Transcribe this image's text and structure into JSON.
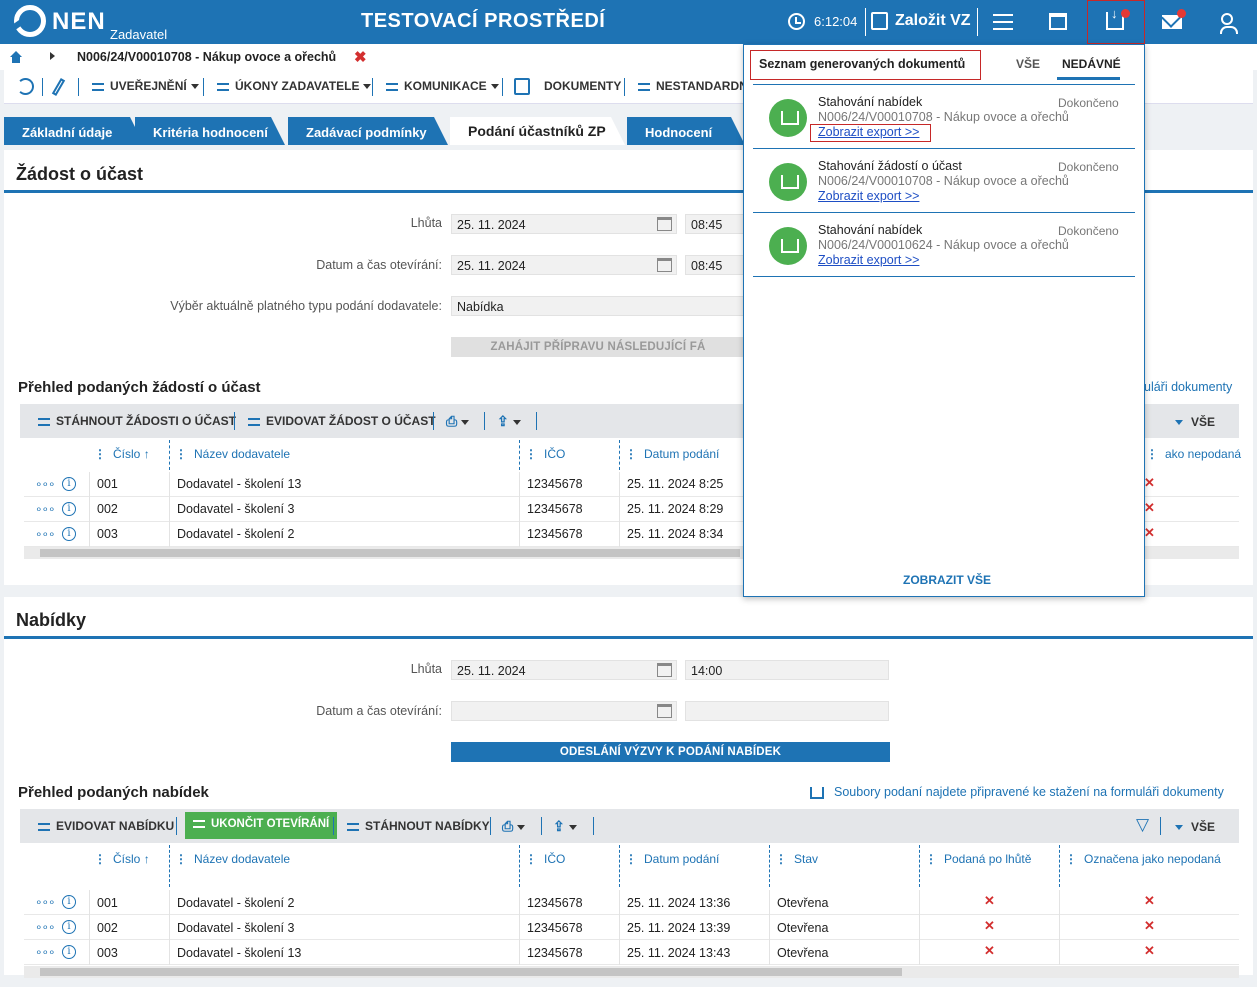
{
  "header": {
    "logo": "NEN",
    "logo_sub": "Zadavatel",
    "env_title": "TESTOVACÍ PROSTŘEDÍ",
    "clock": "6:12:04",
    "create_vz": "Založit VZ"
  },
  "breadcrumb": {
    "title": "N006/24/V00010708 - Nákup ovoce a ořechů",
    "close": "✖"
  },
  "toolbar": {
    "uverejneni": "UVEŘEJNĚNÍ",
    "ukony": "ÚKONY ZADAVATELE",
    "komunikace": "KOMUNIKACE",
    "dokumenty": "DOKUMENTY",
    "nestandardni": "NESTANDARDN"
  },
  "tabs": [
    "Základní údaje",
    "Kritéria hodnocení",
    "Zadávací podmínky",
    "Podání účastníků ZP",
    "Hodnocení"
  ],
  "zadost": {
    "title": "Žádost o účast",
    "lhuta_label": "Lhůta",
    "lhuta_date": "25. 11. 2024",
    "lhuta_time": "08:45",
    "otevreni_label": "Datum a čas otevírání:",
    "otevreni_date": "25. 11. 2024",
    "otevreni_time": "08:45",
    "typ_label": "Výběr aktuálně platného typu podání dodavatele:",
    "typ_value": "Nabídka",
    "start_btn": "ZAHÁJIT PŘÍPRAVU NÁSLEDUJÍCÍ FÁ",
    "list_title": "Přehled podaných žádostí o účast",
    "list_link": "uláři dokumenty",
    "btn_download": "STÁHNOUT ŽÁDOSTI O ÚČAST",
    "btn_evidovat": "EVIDOVAT ŽÁDOST O ÚČAST",
    "all_label": "VŠE",
    "cols": {
      "cislo": "Číslo",
      "nazev": "Název dodavatele",
      "ico": "IČO",
      "datum": "Datum podání",
      "nepodana": "ako nepodaná"
    },
    "rows": [
      {
        "cislo": "001",
        "nazev": "Dodavatel - školení 13",
        "ico": "12345678",
        "datum": "25. 11. 2024 8:25"
      },
      {
        "cislo": "002",
        "nazev": "Dodavatel - školení 3",
        "ico": "12345678",
        "datum": "25. 11. 2024 8:29"
      },
      {
        "cislo": "003",
        "nazev": "Dodavatel - školení 2",
        "ico": "12345678",
        "datum": "25. 11. 2024 8:34"
      }
    ]
  },
  "nabidky": {
    "title": "Nabídky",
    "lhuta_label": "Lhůta",
    "lhuta_date": "25. 11. 2024",
    "lhuta_time": "14:00",
    "otevreni_label": "Datum a čas otevírání:",
    "send_btn": "ODESLÁNÍ VÝZVY K PODÁNÍ NABÍDEK",
    "list_title": "Přehled podaných nabídek",
    "list_link": "Soubory podaní najdete připravené ke stažení na formuláři dokumenty",
    "btn_evidovat": "EVIDOVAT NABÍDKU",
    "btn_ukoncit": "UKONČIT OTEVÍRÁNÍ",
    "btn_stahnout": "STÁHNOUT NABÍDKY",
    "all_label": "VŠE",
    "cols": {
      "cislo": "Číslo",
      "nazev": "Název dodavatele",
      "ico": "IČO",
      "datum": "Datum podání",
      "stav": "Stav",
      "po_lhute": "Podaná po lhůtě",
      "nepodana": "Označena jako nepodaná"
    },
    "rows": [
      {
        "cislo": "001",
        "nazev": "Dodavatel - školení 2",
        "ico": "12345678",
        "datum": "25. 11. 2024 13:36",
        "stav": "Otevřena"
      },
      {
        "cislo": "002",
        "nazev": "Dodavatel - školení 3",
        "ico": "12345678",
        "datum": "25. 11. 2024 13:39",
        "stav": "Otevřena"
      },
      {
        "cislo": "003",
        "nazev": "Dodavatel - školení 13",
        "ico": "12345678",
        "datum": "25. 11. 2024 13:43",
        "stav": "Otevřena"
      }
    ]
  },
  "popup": {
    "title": "Seznam generovaných dokumentů",
    "tab_all": "VŠE",
    "tab_recent": "NEDÁVNÉ",
    "items": [
      {
        "name": "Stahování nabídek",
        "status": "Dokončeno",
        "desc": "N006/24/V00010708 - Nákup ovoce a ořechů",
        "link": "Zobrazit export >>"
      },
      {
        "name": "Stahování žádostí o účast",
        "status": "Dokončeno",
        "desc": "N006/24/V00010708 - Nákup ovoce a ořechů",
        "link": "Zobrazit export >>"
      },
      {
        "name": "Stahování nabídek",
        "status": "Dokončeno",
        "desc": "N006/24/V00010624 - Nákup ovoce a ořechů",
        "link": "Zobrazit export >>"
      }
    ],
    "show_all": "ZOBRAZIT VŠE"
  },
  "marks": {
    "cross": "✕",
    "sort_up": "↑",
    "info": "i",
    "dots": "∘∘∘"
  },
  "colors": {
    "brand": "#1e73b4",
    "accent_red": "#d32f2f",
    "success": "#4caf50"
  }
}
